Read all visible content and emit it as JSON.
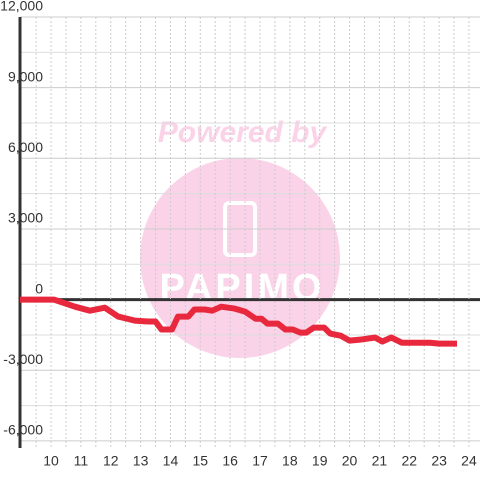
{
  "chart_data": {
    "type": "line",
    "watermark": "Powered by",
    "logo": "PAPIMO",
    "x": [
      8.96,
      10.1,
      10.8,
      11.3,
      11.8,
      12.25,
      12.8,
      13.25,
      13.5,
      13.7,
      14.05,
      14.25,
      14.6,
      14.8,
      15.15,
      15.4,
      15.7,
      16.15,
      16.5,
      16.85,
      17.05,
      17.25,
      17.6,
      17.85,
      18.1,
      18.35,
      18.55,
      18.8,
      19.15,
      19.35,
      19.7,
      20.0,
      20.35,
      20.85,
      21.1,
      21.4,
      21.75,
      22.7,
      23.0,
      23.6
    ],
    "series": [
      {
        "color": "#e8283c",
        "values": [
          0,
          0,
          -300,
          -470,
          -340,
          -720,
          -890,
          -930,
          -930,
          -1270,
          -1270,
          -720,
          -720,
          -420,
          -420,
          -470,
          -300,
          -380,
          -510,
          -810,
          -810,
          -1020,
          -1020,
          -1270,
          -1270,
          -1400,
          -1400,
          -1190,
          -1190,
          -1440,
          -1530,
          -1740,
          -1700,
          -1610,
          -1780,
          -1610,
          -1830,
          -1830,
          -1870,
          -1870
        ]
      }
    ],
    "xlim": [
      8.96,
      24.37
    ],
    "xticks": [
      10,
      11,
      12,
      13,
      14,
      15,
      16,
      17,
      18,
      19,
      20,
      21,
      22,
      23,
      24
    ],
    "minor_xticks": [
      9.5,
      10.5,
      11.5,
      12.5,
      13.5,
      14.5,
      15.5,
      16.5,
      17.5,
      18.5,
      19.5,
      20.5,
      21.5,
      22.5,
      23.5
    ],
    "ylim": [
      -6300,
      12000
    ],
    "yticks": [
      {
        "value": -6000,
        "label": "-6,000"
      },
      {
        "value": -3000,
        "label": "-3,000"
      },
      0,
      {
        "value": 3000,
        "label": "3,000"
      },
      {
        "value": 6000,
        "label": "6,000"
      },
      {
        "value": 9000,
        "label": "9,000"
      },
      {
        "value": 12000,
        "label": "12,000"
      }
    ],
    "minor_yticks": [
      -4500,
      -1500,
      1500,
      4500,
      7500,
      10500
    ],
    "grid": true
  }
}
